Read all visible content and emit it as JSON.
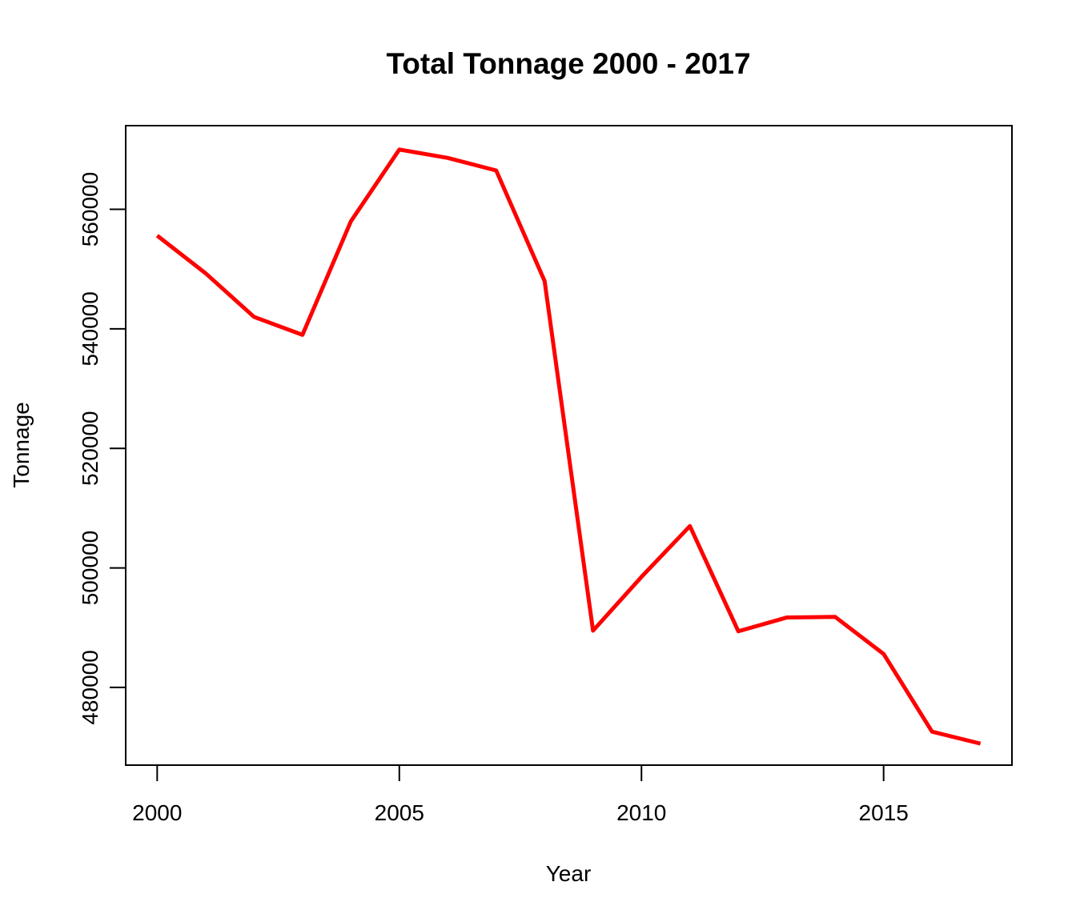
{
  "chart_data": {
    "type": "line",
    "title": "Total Tonnage 2000 - 2017",
    "xlabel": "Year",
    "ylabel": "Tonnage",
    "xlim": [
      1999.35,
      2017.65
    ],
    "ylim": [
      467000,
      574000
    ],
    "x_ticks": [
      2000,
      2005,
      2010,
      2015
    ],
    "y_ticks": [
      480000,
      500000,
      520000,
      540000,
      560000
    ],
    "grid": false,
    "legend": "none",
    "line_color": "#ff0000",
    "series": [
      {
        "x": [
          2000,
          2001,
          2002,
          2003,
          2004,
          2005,
          2006,
          2007,
          2008,
          2009,
          2010,
          2011,
          2012,
          2013,
          2014,
          2015,
          2016,
          2017
        ],
        "values": [
          555600,
          549300,
          542000,
          539000,
          558000,
          570000,
          568600,
          566500,
          548000,
          489500,
          498500,
          507000,
          489400,
          491700,
          491800,
          485600,
          472600,
          470600
        ]
      }
    ]
  }
}
